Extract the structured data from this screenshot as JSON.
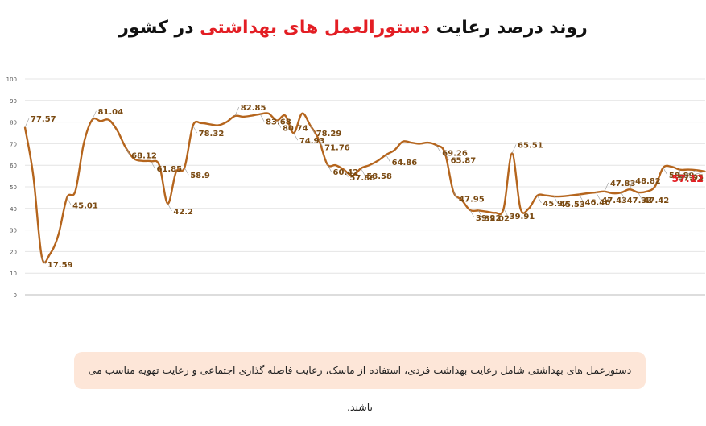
{
  "title": {
    "before": "روند درصد رعایت ",
    "highlight": "دستورالعمل های بهداشتی",
    "after": " در کشور"
  },
  "note": "دستورعمل های بهداشتی شامل رعایت بهداشت فردی، استفاده از ماسک، رعایت فاصله گذاری اجتماعی و رعایت تهویه مناسب می باشند.",
  "colors": {
    "line": "#b5651d",
    "label": "#7a4a12",
    "last_label": "#e31e24",
    "highlight": "#e31e24",
    "grid": "#e4e4e4",
    "note_bg": "#fde6d8"
  },
  "chart_data": {
    "type": "line",
    "ylim": [
      0,
      100
    ],
    "yticks": [
      0,
      10,
      20,
      30,
      40,
      50,
      60,
      70,
      80,
      90,
      100
    ],
    "grid": true,
    "series": [
      {
        "values": [
          77.57,
          55,
          17.59,
          19,
          28,
          45.01,
          48,
          70,
          81.04,
          80.5,
          81,
          76,
          68.12,
          63,
          62,
          61.85,
          60,
          42.2,
          57,
          58.9,
          78.32,
          79.5,
          79,
          78.5,
          80,
          82.85,
          82.5,
          83,
          83.68,
          84,
          80.74,
          83,
          74.93,
          84,
          78.29,
          71.76,
          60.42,
          60,
          57.88,
          55,
          58.58,
          60,
          62,
          64.86,
          67,
          71,
          70.5,
          70,
          70.5,
          69.26,
          65.87,
          47.95,
          44,
          39.22,
          39.02,
          38.5,
          38,
          39.91,
          65.51,
          39.91,
          40,
          45.97,
          46,
          45.53,
          45.6,
          46,
          46.46,
          47,
          47.43,
          47.83,
          47,
          47.33,
          48.82,
          47.42,
          47.8,
          50,
          58.89,
          59.3,
          57.95,
          58,
          57.71,
          57.12
        ]
      }
    ],
    "point_labels": [
      {
        "i": 0,
        "text": "77.57"
      },
      {
        "i": 2,
        "text": "17.59"
      },
      {
        "i": 5,
        "text": "45.01"
      },
      {
        "i": 8,
        "text": "81.04"
      },
      {
        "i": 12,
        "text": "68.12"
      },
      {
        "i": 15,
        "text": "61.85"
      },
      {
        "i": 17,
        "text": "42.2"
      },
      {
        "i": 19,
        "text": "58.9"
      },
      {
        "i": 20,
        "text": "78.32"
      },
      {
        "i": 25,
        "text": "82.85"
      },
      {
        "i": 28,
        "text": "83.68"
      },
      {
        "i": 30,
        "text": "80.74"
      },
      {
        "i": 32,
        "text": "74.93"
      },
      {
        "i": 34,
        "text": "78.29"
      },
      {
        "i": 35,
        "text": "71.76"
      },
      {
        "i": 36,
        "text": "60.42"
      },
      {
        "i": 38,
        "text": "57.88"
      },
      {
        "i": 40,
        "text": "58.58"
      },
      {
        "i": 43,
        "text": "64.86"
      },
      {
        "i": 49,
        "text": "69.26"
      },
      {
        "i": 50,
        "text": "65.87"
      },
      {
        "i": 51,
        "text": "47.95"
      },
      {
        "i": 53,
        "text": "39.22"
      },
      {
        "i": 54,
        "text": "39.02"
      },
      {
        "i": 57,
        "text": "39.91"
      },
      {
        "i": 58,
        "text": "65.51"
      },
      {
        "i": 61,
        "text": "45.97"
      },
      {
        "i": 63,
        "text": "45.53"
      },
      {
        "i": 66,
        "text": "46.46"
      },
      {
        "i": 68,
        "text": "47.43"
      },
      {
        "i": 69,
        "text": "47.83"
      },
      {
        "i": 71,
        "text": "47.33"
      },
      {
        "i": 72,
        "text": "48.82"
      },
      {
        "i": 73,
        "text": "47.42"
      },
      {
        "i": 76,
        "text": "58.89"
      },
      {
        "i": 78,
        "text": "57.95"
      },
      {
        "i": 80,
        "text": "57.71"
      },
      {
        "i": 81,
        "text": "57.12"
      }
    ]
  }
}
